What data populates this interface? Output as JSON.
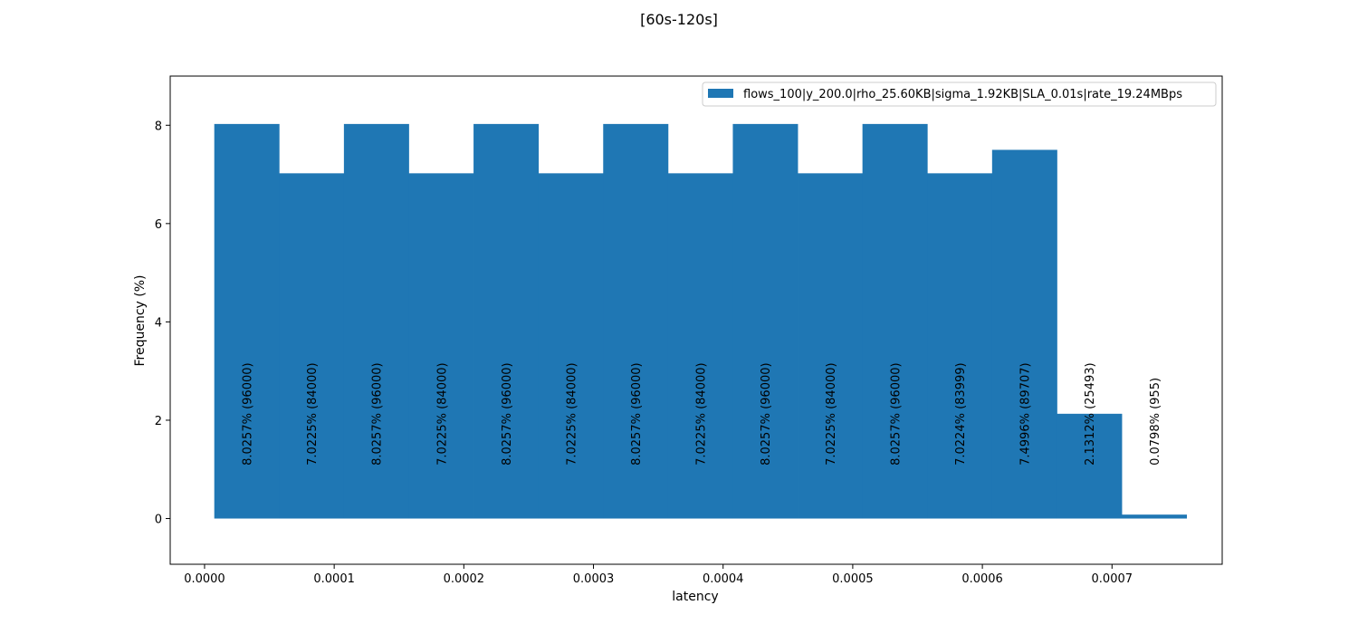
{
  "chart_data": {
    "type": "bar",
    "title": "[60s-120s]",
    "xlabel": "latency",
    "ylabel": "Frequency (%)",
    "xlim": [
      -2.65e-05,
      0.000785
    ],
    "ylim": [
      -0.93,
      9.0
    ],
    "xticks": [
      "0.0000",
      "0.0001",
      "0.0002",
      "0.0003",
      "0.0004",
      "0.0005",
      "0.0006",
      "0.0007"
    ],
    "xtick_values": [
      0,
      0.0001,
      0.0002,
      0.0003,
      0.0004,
      0.0005,
      0.0006,
      0.0007
    ],
    "yticks": [
      "0",
      "2",
      "4",
      "6",
      "8"
    ],
    "ytick_values": [
      0,
      2,
      4,
      6,
      8
    ],
    "grid": false,
    "legend_position": "top-right",
    "series": [
      {
        "name": "flows_100|y_200.0|rho_25.60KB|sigma_1.92KB|SLA_0.01s|rate_19.24MBps",
        "color": "#1f77b4",
        "bin_edges": [
          7.5e-06,
          5.75e-05,
          0.0001075,
          0.0001575,
          0.0002075,
          0.0002575,
          0.0003075,
          0.0003575,
          0.0004075,
          0.0004575,
          0.0005075,
          0.0005575,
          0.0006075,
          0.0006575,
          0.0007075,
          0.0007575
        ],
        "values": [
          8.0257,
          7.0225,
          8.0257,
          7.0225,
          8.0257,
          7.0225,
          8.0257,
          7.0225,
          8.0257,
          7.0225,
          8.0257,
          7.0224,
          7.4996,
          2.1312,
          0.0798
        ],
        "labels": [
          "8.0257% (96000)",
          "7.0225% (84000)",
          "8.0257% (96000)",
          "7.0225% (84000)",
          "8.0257% (96000)",
          "7.0225% (84000)",
          "8.0257% (96000)",
          "7.0225% (84000)",
          "8.0257% (96000)",
          "7.0225% (84000)",
          "8.0257% (96000)",
          "7.0224% (83999)",
          "7.4996% (89707)",
          "2.1312% (25493)",
          "0.0798% (955)"
        ]
      }
    ]
  }
}
